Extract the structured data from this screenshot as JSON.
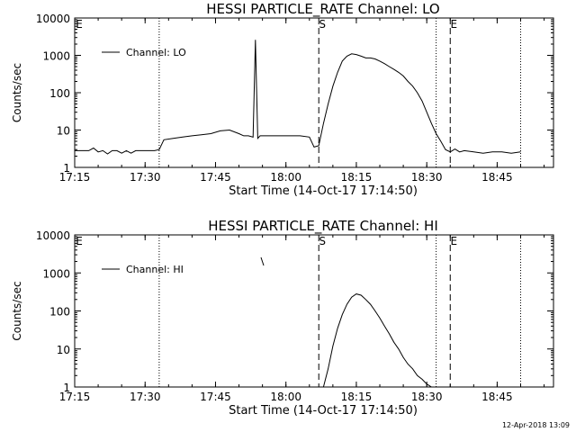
{
  "footer": {
    "timestamp": "12-Apr-2018 13:09"
  },
  "chart_data": [
    {
      "type": "line",
      "title": "HESSI PARTICLE_RATE Channel: LO",
      "xlabel": "Start Time (14-Oct-17 17:14:50)",
      "ylabel": "Counts/sec",
      "yscale": "log",
      "ylim": [
        1,
        10000
      ],
      "xlim": [
        "17:15",
        "18:57"
      ],
      "x_ticks": [
        "17:15",
        "17:30",
        "17:45",
        "18:00",
        "18:15",
        "18:30",
        "18:45"
      ],
      "y_ticks": [
        "1",
        "10",
        "100",
        "1000",
        "10000"
      ],
      "legend": {
        "position": "top-left",
        "entries": [
          "Channel: LO"
        ]
      },
      "markers": {
        "S": "18:07",
        "E": "18:35"
      },
      "dotted_lines": [
        "17:33",
        "18:32",
        "18:50"
      ],
      "dashed_lines": [
        "18:07",
        "18:35"
      ],
      "series": [
        {
          "name": "Channel: LO",
          "x": [
            "17:15",
            "17:18",
            "17:19",
            "17:20",
            "17:21",
            "17:22",
            "17:23",
            "17:24",
            "17:25",
            "17:26",
            "17:27",
            "17:28",
            "17:30",
            "17:32",
            "17:33",
            "17:34",
            "17:36",
            "17:38",
            "17:40",
            "17:42",
            "17:44",
            "17:46",
            "17:48",
            "17:50",
            "17:51",
            "17:52",
            "17:53",
            "17:53.5",
            "17:54",
            "17:54.5",
            "17:55",
            "17:57",
            "17:59",
            "18:01",
            "18:03",
            "18:05",
            "18:06",
            "18:07",
            "18:08",
            "18:09",
            "18:10",
            "18:11",
            "18:12",
            "18:13",
            "18:14",
            "18:15",
            "18:16",
            "18:17",
            "18:18",
            "18:19",
            "18:20",
            "18:21",
            "18:22",
            "18:23",
            "18:24",
            "18:25",
            "18:26",
            "18:27",
            "18:28",
            "18:29",
            "18:30",
            "18:31",
            "18:32",
            "18:33",
            "18:34",
            "18:35",
            "18:36",
            "18:37",
            "18:38",
            "18:40",
            "18:42",
            "18:44",
            "18:46",
            "18:48",
            "18:50"
          ],
          "y": [
            2.8,
            2.8,
            3.3,
            2.6,
            2.8,
            2.3,
            2.8,
            2.8,
            2.4,
            2.8,
            2.4,
            2.8,
            2.8,
            2.8,
            3.0,
            5.5,
            6,
            6.5,
            7,
            7.5,
            8,
            9.5,
            10,
            8,
            7,
            7,
            6.5,
            2600,
            6,
            7,
            7,
            7,
            7,
            7,
            7,
            6.5,
            3.5,
            3.8,
            15,
            50,
            150,
            350,
            700,
            950,
            1100,
            1050,
            950,
            850,
            850,
            800,
            700,
            600,
            500,
            420,
            350,
            280,
            200,
            150,
            100,
            60,
            30,
            15,
            8,
            5,
            3,
            2.6,
            3.1,
            2.6,
            2.8,
            2.6,
            2.4,
            2.6,
            2.6,
            2.4,
            2.6
          ]
        }
      ]
    },
    {
      "type": "line",
      "title": "HESSI PARTICLE_RATE Channel: HI",
      "xlabel": "Start Time (14-Oct-17 17:14:50)",
      "ylabel": "Counts/sec",
      "yscale": "log",
      "ylim": [
        1,
        10000
      ],
      "xlim": [
        "17:15",
        "18:57"
      ],
      "x_ticks": [
        "17:15",
        "17:30",
        "17:45",
        "18:00",
        "18:15",
        "18:30",
        "18:45"
      ],
      "y_ticks": [
        "1",
        "10",
        "100",
        "1000",
        "10000"
      ],
      "legend": {
        "position": "top-left",
        "entries": [
          "Channel: HI"
        ]
      },
      "markers": {
        "S": "18:07",
        "E": "18:35"
      },
      "dotted_lines": [
        "17:33",
        "18:32",
        "18:50"
      ],
      "dashed_lines": [
        "18:07",
        "18:35"
      ],
      "series": [
        {
          "name": "Channel: HI",
          "x": [
            "18:08",
            "18:09",
            "18:10",
            "18:11",
            "18:12",
            "18:13",
            "18:14",
            "18:15",
            "18:16",
            "18:17",
            "18:18",
            "18:19",
            "18:20",
            "18:21",
            "18:22",
            "18:23",
            "18:24",
            "18:25",
            "18:26",
            "18:27",
            "18:28",
            "18:29",
            "18:30",
            "18:31"
          ],
          "y": [
            1,
            3,
            12,
            35,
            80,
            150,
            230,
            280,
            260,
            200,
            150,
            100,
            65,
            40,
            25,
            15,
            10,
            6,
            4,
            3,
            2,
            1.6,
            1.2,
            1
          ]
        }
      ]
    }
  ]
}
